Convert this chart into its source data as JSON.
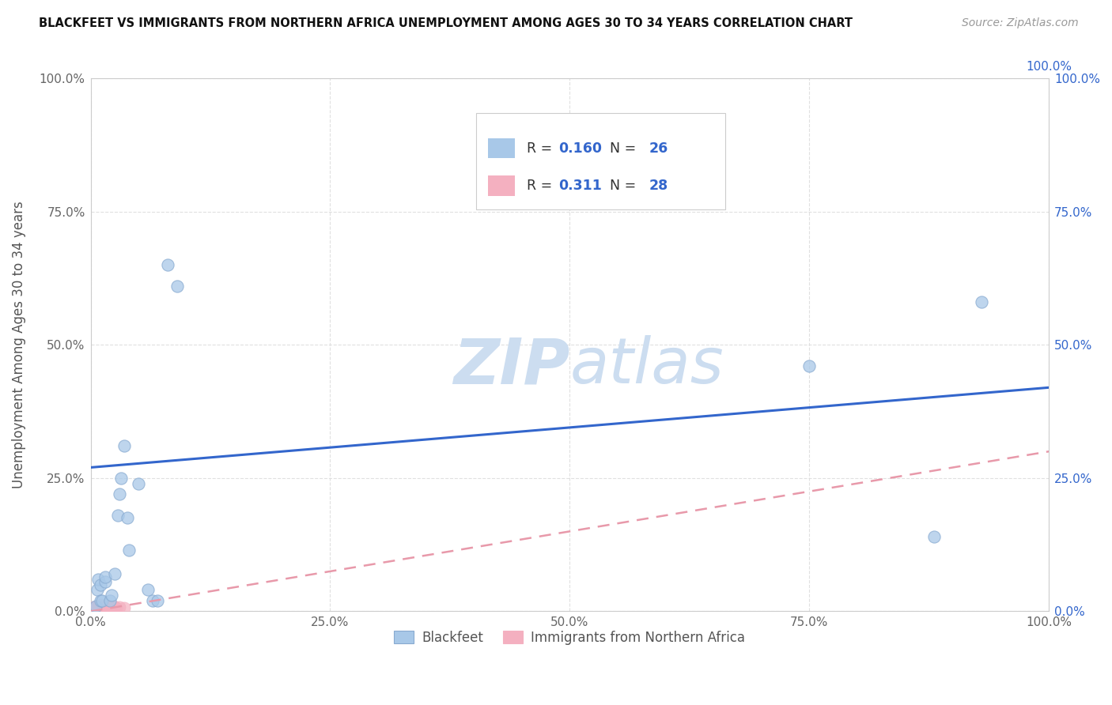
{
  "title": "BLACKFEET VS IMMIGRANTS FROM NORTHERN AFRICA UNEMPLOYMENT AMONG AGES 30 TO 34 YEARS CORRELATION CHART",
  "source": "Source: ZipAtlas.com",
  "ylabel": "Unemployment Among Ages 30 to 34 years",
  "xlabel": "",
  "xlim": [
    0.0,
    1.0
  ],
  "ylim": [
    0.0,
    1.0
  ],
  "xticks": [
    0.0,
    0.25,
    0.5,
    0.75,
    1.0
  ],
  "yticks": [
    0.0,
    0.25,
    0.5,
    0.75,
    1.0
  ],
  "xtick_labels": [
    "0.0%",
    "25.0%",
    "50.0%",
    "75.0%",
    "100.0%"
  ],
  "ytick_labels": [
    "0.0%",
    "25.0%",
    "50.0%",
    "75.0%",
    "100.0%"
  ],
  "right_ytick_labels": [
    "0.0%",
    "25.0%",
    "50.0%",
    "75.0%",
    "100.0%"
  ],
  "top_xtick_labels": [
    "100.0%"
  ],
  "blackfeet_color": "#a8c8e8",
  "immigrants_color": "#f4b0c0",
  "blue_line_color": "#3366cc",
  "pink_line_color": "#e899aa",
  "legend_R_blue": "0.160",
  "legend_N_blue": "26",
  "legend_R_pink": "0.311",
  "legend_N_pink": "28",
  "legend_value_color": "#3366cc",
  "watermark_zip": "ZIP",
  "watermark_atlas": "atlas",
  "watermark_color": "#ccddf0",
  "background_color": "#ffffff",
  "blackfeet_x": [
    0.005,
    0.007,
    0.008,
    0.01,
    0.01,
    0.012,
    0.015,
    0.015,
    0.02,
    0.022,
    0.025,
    0.028,
    0.03,
    0.032,
    0.035,
    0.038,
    0.04,
    0.05,
    0.06,
    0.065,
    0.07,
    0.08,
    0.09,
    0.75,
    0.88,
    0.93
  ],
  "blackfeet_y": [
    0.01,
    0.04,
    0.06,
    0.02,
    0.05,
    0.02,
    0.055,
    0.065,
    0.02,
    0.03,
    0.07,
    0.18,
    0.22,
    0.25,
    0.31,
    0.175,
    0.115,
    0.24,
    0.04,
    0.02,
    0.02,
    0.65,
    0.61,
    0.46,
    0.14,
    0.58
  ],
  "immigrants_x": [
    0.002,
    0.003,
    0.004,
    0.005,
    0.006,
    0.007,
    0.008,
    0.009,
    0.01,
    0.01,
    0.011,
    0.012,
    0.013,
    0.014,
    0.015,
    0.016,
    0.017,
    0.018,
    0.019,
    0.02,
    0.021,
    0.022,
    0.023,
    0.024,
    0.025,
    0.027,
    0.03,
    0.035
  ],
  "immigrants_y": [
    0.005,
    0.008,
    0.006,
    0.008,
    0.01,
    0.007,
    0.009,
    0.007,
    0.008,
    0.012,
    0.007,
    0.006,
    0.009,
    0.008,
    0.007,
    0.009,
    0.008,
    0.006,
    0.008,
    0.007,
    0.009,
    0.008,
    0.007,
    0.009,
    0.008,
    0.007,
    0.008,
    0.006
  ],
  "blue_line_x": [
    0.0,
    1.0
  ],
  "blue_line_y": [
    0.27,
    0.42
  ],
  "pink_line_x": [
    0.0,
    1.0
  ],
  "pink_line_y": [
    0.0,
    0.3
  ],
  "grid_color": "#dddddd",
  "grid_linestyle": "--"
}
